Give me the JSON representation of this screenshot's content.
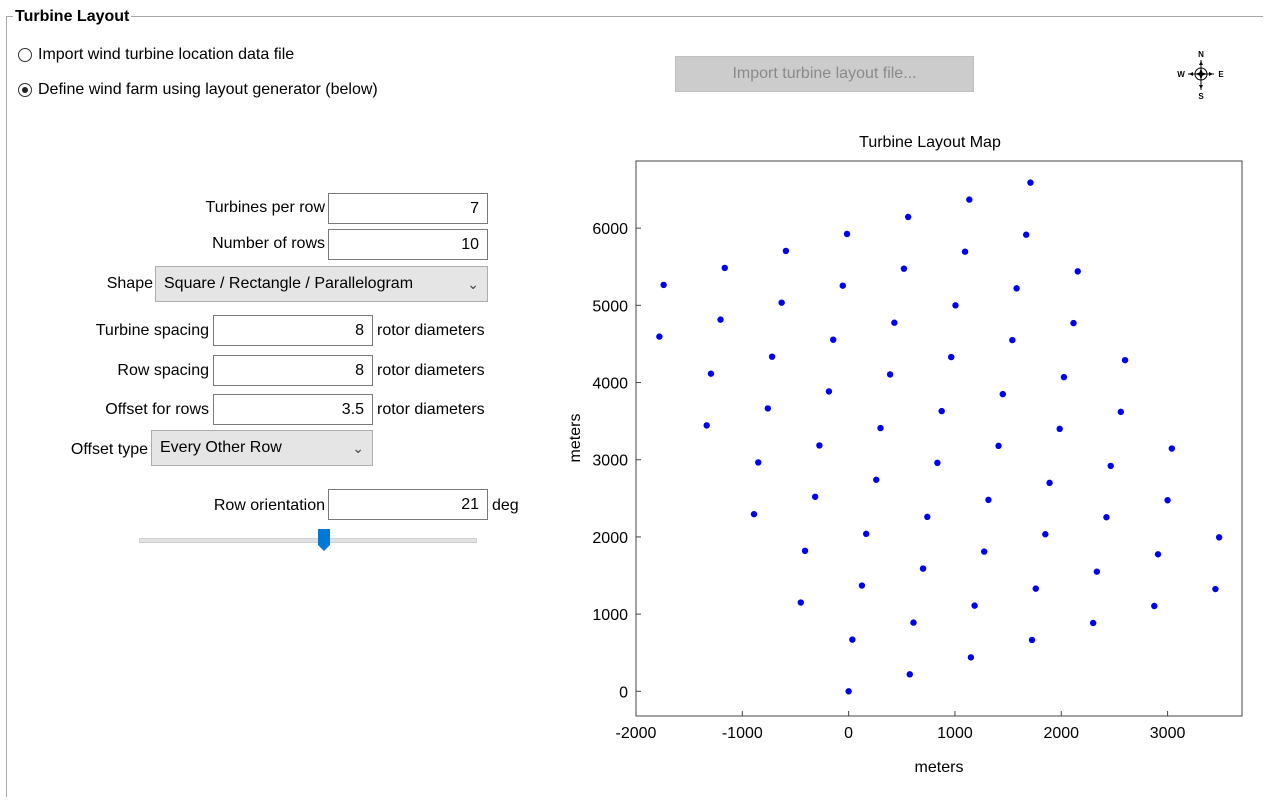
{
  "group": {
    "title": "Turbine Layout"
  },
  "options": {
    "import_label": "Import wind turbine location data file",
    "generator_label": "Define wind farm using layout generator (below)",
    "selected": "generator"
  },
  "import_button": {
    "label": "Import turbine layout file...",
    "enabled": false
  },
  "compass": {
    "n": "N",
    "s": "S",
    "e": "E",
    "w": "W"
  },
  "generator": {
    "turbines_per_row_label": "Turbines per row",
    "turbines_per_row": "7",
    "rows_label": "Number of rows",
    "rows": "10",
    "shape_label": "Shape",
    "shape": "Square / Rectangle / Parallelogram",
    "turbine_spacing_label": "Turbine spacing",
    "turbine_spacing": "8",
    "row_spacing_label": "Row spacing",
    "row_spacing": "8",
    "offset_label": "Offset for rows",
    "offset": "3.5",
    "unit": "rotor diameters",
    "offset_type_label": "Offset type",
    "offset_type": "Every Other Row",
    "orientation_label": "Row orientation",
    "orientation": "21",
    "orientation_unit": "deg",
    "orientation_slider_fraction": 0.55
  },
  "chart_data": {
    "type": "scatter",
    "title": "Turbine Layout Map",
    "xlabel": "meters",
    "ylabel": "meters",
    "xlim": [
      -2000,
      3700
    ],
    "ylim": [
      -320,
      6870
    ],
    "xticks": [
      -2000,
      -1000,
      0,
      1000,
      2000,
      3000
    ],
    "yticks": [
      0,
      1000,
      2000,
      3000,
      4000,
      5000,
      6000
    ],
    "point_color": "#0000ee",
    "points": [
      [
        0,
        0
      ],
      [
        575,
        220
      ],
      [
        1150,
        440
      ],
      [
        1725,
        665
      ],
      [
        2300,
        885
      ],
      [
        2875,
        1105
      ],
      [
        3450,
        1325
      ],
      [
        35,
        670
      ],
      [
        610,
        890
      ],
      [
        1185,
        1110
      ],
      [
        1760,
        1330
      ],
      [
        2335,
        1550
      ],
      [
        2910,
        1775
      ],
      [
        3485,
        1995
      ],
      [
        -450,
        1150
      ],
      [
        125,
        1370
      ],
      [
        700,
        1590
      ],
      [
        1275,
        1810
      ],
      [
        1850,
        2035
      ],
      [
        2425,
        2255
      ],
      [
        3000,
        2475
      ],
      [
        -410,
        1820
      ],
      [
        165,
        2040
      ],
      [
        740,
        2260
      ],
      [
        1315,
        2480
      ],
      [
        1890,
        2700
      ],
      [
        2465,
        2920
      ],
      [
        3040,
        3145
      ],
      [
        -890,
        2295
      ],
      [
        -315,
        2520
      ],
      [
        260,
        2740
      ],
      [
        835,
        2960
      ],
      [
        1410,
        3180
      ],
      [
        1985,
        3400
      ],
      [
        2560,
        3620
      ],
      [
        -850,
        2965
      ],
      [
        -275,
        3185
      ],
      [
        300,
        3410
      ],
      [
        875,
        3630
      ],
      [
        1450,
        3850
      ],
      [
        2025,
        4070
      ],
      [
        2600,
        4290
      ],
      [
        -1335,
        3445
      ],
      [
        -760,
        3665
      ],
      [
        -185,
        3885
      ],
      [
        390,
        4105
      ],
      [
        965,
        4330
      ],
      [
        1540,
        4550
      ],
      [
        2115,
        4770
      ],
      [
        -1295,
        4115
      ],
      [
        -720,
        4335
      ],
      [
        -145,
        4555
      ],
      [
        430,
        4775
      ],
      [
        1005,
        5000
      ],
      [
        1580,
        5220
      ],
      [
        2155,
        5440
      ],
      [
        -1780,
        4595
      ],
      [
        -1205,
        4815
      ],
      [
        -630,
        5035
      ],
      [
        -55,
        5255
      ],
      [
        520,
        5475
      ],
      [
        1095,
        5695
      ],
      [
        1670,
        5915
      ],
      [
        -1740,
        5265
      ],
      [
        -1165,
        5485
      ],
      [
        -590,
        5705
      ],
      [
        -15,
        5925
      ],
      [
        560,
        6145
      ],
      [
        1135,
        6370
      ],
      [
        1710,
        6590
      ]
    ]
  }
}
